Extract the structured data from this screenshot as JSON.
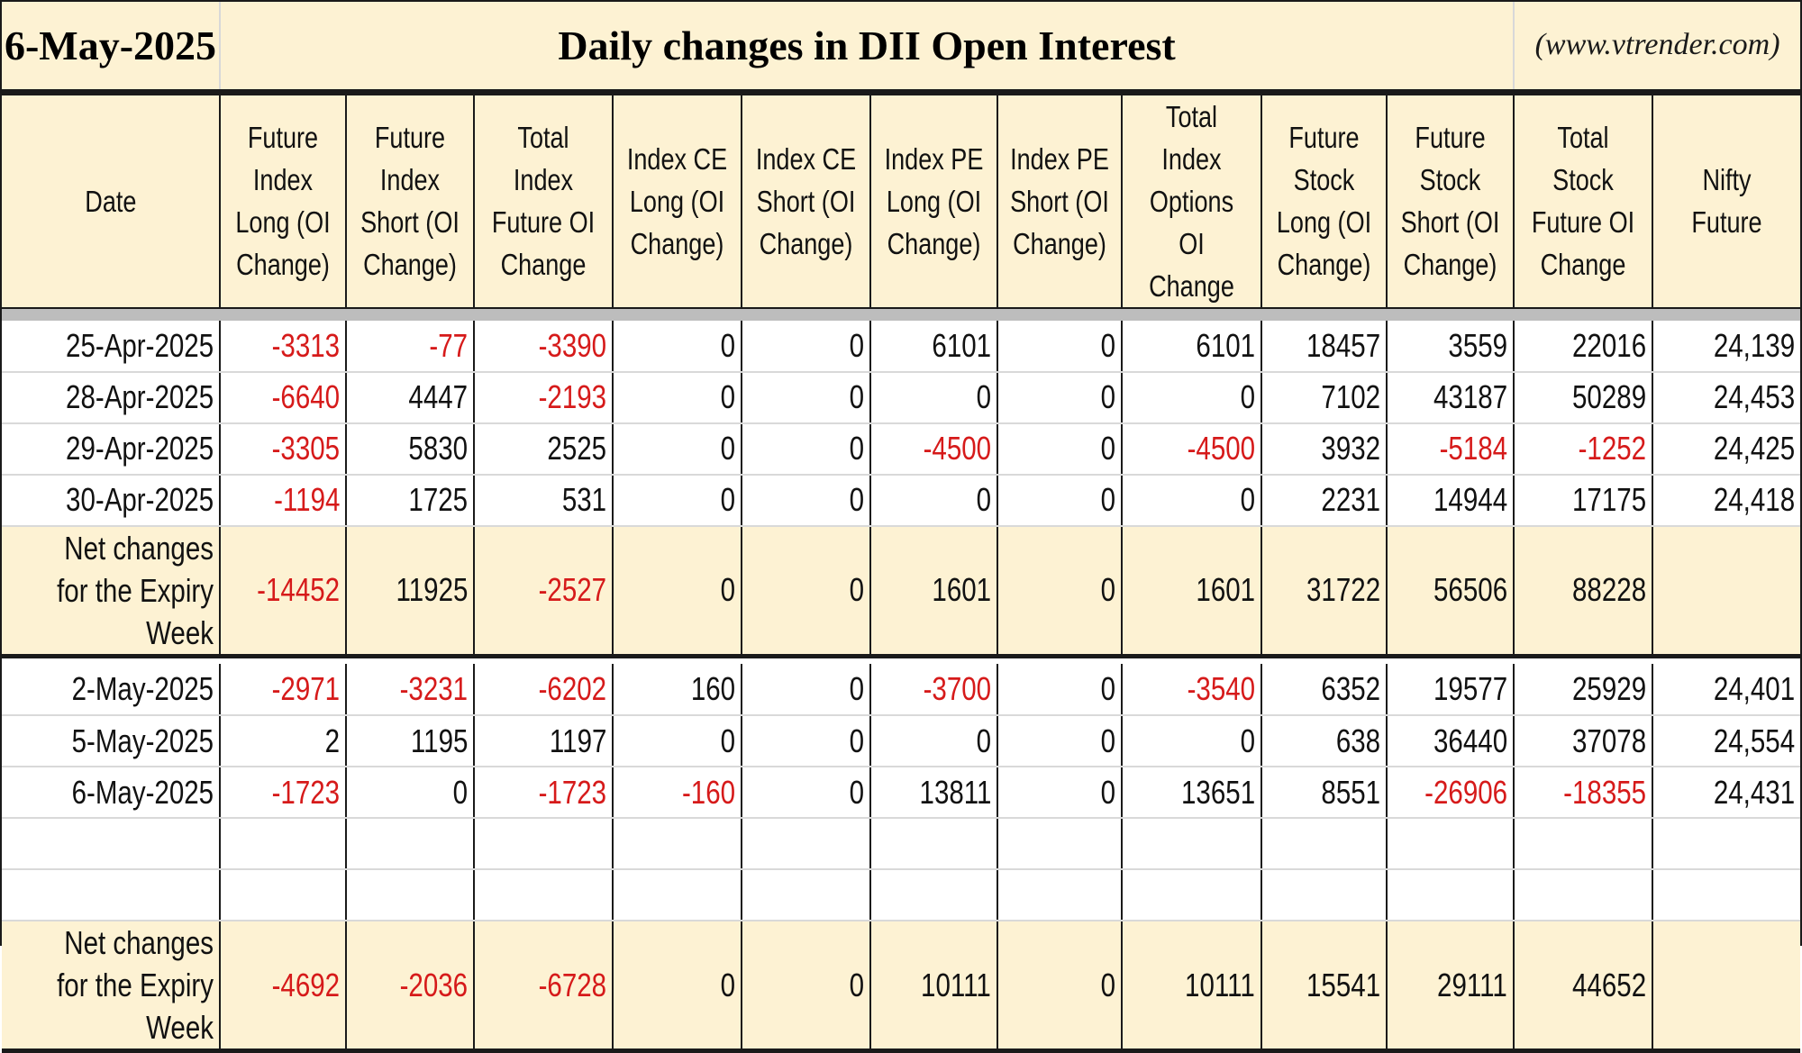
{
  "header": {
    "date": "6-May-2025",
    "title": "Daily changes in DII Open Interest",
    "site": "(www.vtrender.com)"
  },
  "colors": {
    "header_bg": "#fdf2d3",
    "negative": "#d61a1a",
    "separator": "#bdbdbd"
  },
  "chart_data": {
    "type": "table",
    "columns": [
      "Date",
      "Future Index Long (OI Change)",
      "Future Index Short (OI Change)",
      "Total Index Future OI Change",
      "Index CE Long (OI Change)",
      "Index CE Short (OI Change)",
      "Index PE Long (OI Change)",
      "Index PE Short (OI Change)",
      "Total Index Options OI Change",
      "Future Stock Long (OI Change)",
      "Future Stock Short (OI Change)",
      "Total Stock Future OI Change",
      "Nifty Future"
    ],
    "sections": [
      {
        "rows": [
          [
            "25-Apr-2025",
            "-3313",
            "-77",
            "-3390",
            "0",
            "0",
            "6101",
            "0",
            "6101",
            "18457",
            "3559",
            "22016",
            "24,139"
          ],
          [
            "28-Apr-2025",
            "-6640",
            "4447",
            "-2193",
            "0",
            "0",
            "0",
            "0",
            "0",
            "7102",
            "43187",
            "50289",
            "24,453"
          ],
          [
            "29-Apr-2025",
            "-3305",
            "5830",
            "2525",
            "0",
            "0",
            "-4500",
            "0",
            "-4500",
            "3932",
            "-5184",
            "-1252",
            "24,425"
          ],
          [
            "30-Apr-2025",
            "-1194",
            "1725",
            "531",
            "0",
            "0",
            "0",
            "0",
            "0",
            "2231",
            "14944",
            "17175",
            "24,418"
          ]
        ],
        "net": [
          "Net changes for the Expiry Week",
          "-14452",
          "11925",
          "-2527",
          "0",
          "0",
          "1601",
          "0",
          "1601",
          "31722",
          "56506",
          "88228",
          ""
        ]
      },
      {
        "rows": [
          [
            "2-May-2025",
            "-2971",
            "-3231",
            "-6202",
            "160",
            "0",
            "-3700",
            "0",
            "-3540",
            "6352",
            "19577",
            "25929",
            "24,401"
          ],
          [
            "5-May-2025",
            "2",
            "1195",
            "1197",
            "0",
            "0",
            "0",
            "0",
            "0",
            "638",
            "36440",
            "37078",
            "24,554"
          ],
          [
            "6-May-2025",
            "-1723",
            "0",
            "-1723",
            "-160",
            "0",
            "13811",
            "0",
            "13651",
            "8551",
            "-26906",
            "-18355",
            "24,431"
          ],
          [
            "",
            "",
            "",
            "",
            "",
            "",
            "",
            "",
            "",
            "",
            "",
            "",
            ""
          ],
          [
            "",
            "",
            "",
            "",
            "",
            "",
            "",
            "",
            "",
            "",
            "",
            "",
            ""
          ]
        ],
        "net": [
          "Net changes for the Expiry Week",
          "-4692",
          "-2036",
          "-6728",
          "0",
          "0",
          "10111",
          "0",
          "10111",
          "15541",
          "29111",
          "44652",
          ""
        ]
      }
    ]
  }
}
